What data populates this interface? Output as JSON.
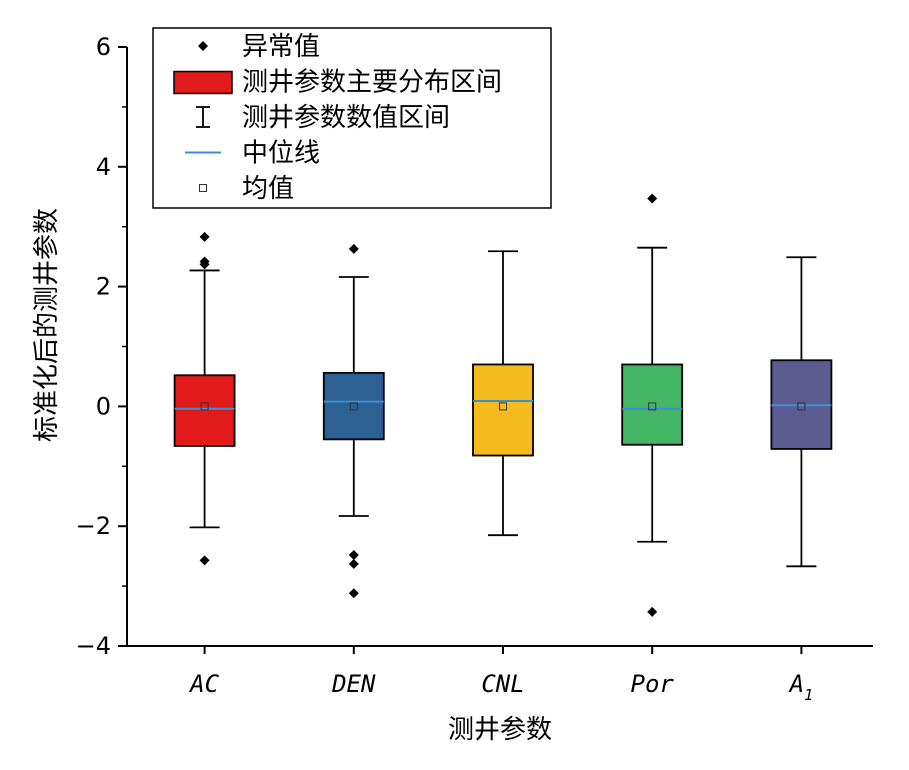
{
  "chart_data": {
    "type": "box",
    "xlabel": "测井参数",
    "ylabel": "标准化后的测井参数",
    "ylim": [
      -4,
      6
    ],
    "yticks": [
      -4,
      -2,
      0,
      2,
      4,
      6
    ],
    "ytick_labels": [
      "−4",
      "−2",
      "0",
      "2",
      "4",
      "6"
    ],
    "categories": [
      {
        "label": "AC",
        "sub": ""
      },
      {
        "label": "DEN",
        "sub": ""
      },
      {
        "label": "CNL",
        "sub": ""
      },
      {
        "label": "Por",
        "sub": ""
      },
      {
        "label": "A",
        "sub": "1"
      }
    ],
    "series": [
      {
        "category": "AC",
        "whisker_low": -2.02,
        "q1": -0.66,
        "median": -0.04,
        "mean": 0.0,
        "q3": 0.52,
        "whisker_high": 2.27,
        "outliers": [
          2.83,
          2.42,
          2.37,
          -2.57
        ],
        "color": "#e31a1c"
      },
      {
        "category": "DEN",
        "whisker_low": -1.83,
        "q1": -0.55,
        "median": 0.08,
        "mean": 0.0,
        "q3": 0.56,
        "whisker_high": 2.16,
        "outliers": [
          2.63,
          -2.48,
          -2.63,
          -3.12
        ],
        "color": "#2e6193"
      },
      {
        "category": "CNL",
        "whisker_low": -2.15,
        "q1": -0.82,
        "median": 0.09,
        "mean": 0.0,
        "q3": 0.7,
        "whisker_high": 2.59,
        "outliers": [],
        "color": "#f4bb1f"
      },
      {
        "category": "Por",
        "whisker_low": -2.26,
        "q1": -0.64,
        "median": -0.04,
        "mean": 0.0,
        "q3": 0.7,
        "whisker_high": 2.65,
        "outliers": [
          3.47,
          -3.43
        ],
        "color": "#44b465"
      },
      {
        "category": "A1",
        "whisker_low": -2.67,
        "q1": -0.71,
        "median": 0.02,
        "mean": 0.0,
        "q3": 0.77,
        "whisker_high": 2.49,
        "outliers": [],
        "color": "#5d5c92"
      }
    ],
    "median_color": "#3a8fd6",
    "legend": {
      "placement": "top-left",
      "entries": [
        {
          "symbol": "outlier",
          "label": "异常值"
        },
        {
          "symbol": "box",
          "label": "测井参数主要分布区间"
        },
        {
          "symbol": "whisker",
          "label": "测井参数数值区间"
        },
        {
          "symbol": "median",
          "label": "中位线"
        },
        {
          "symbol": "mean",
          "label": "均值"
        }
      ]
    },
    "grid": false
  }
}
